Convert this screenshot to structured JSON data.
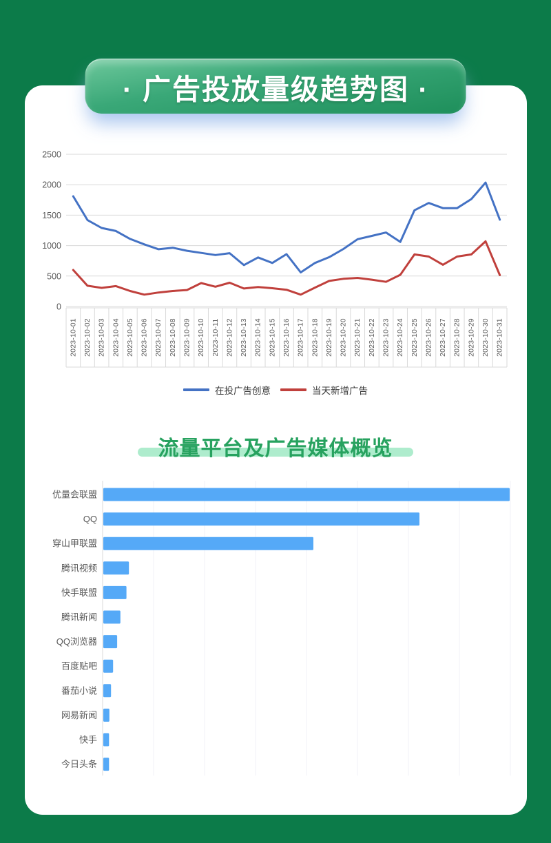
{
  "banner": {
    "title": "· 广告投放量级趋势图 ·"
  },
  "section2": {
    "title": "流量平台及广告媒体概览"
  },
  "chart_data": [
    {
      "type": "line",
      "title": "广告投放量级趋势图",
      "categories": [
        "2023-10-01",
        "2023-10-02",
        "2023-10-03",
        "2023-10-04",
        "2023-10-05",
        "2023-10-06",
        "2023-10-07",
        "2023-10-08",
        "2023-10-09",
        "2023-10-10",
        "2023-10-11",
        "2023-10-12",
        "2023-10-13",
        "2023-10-14",
        "2023-10-15",
        "2023-10-16",
        "2023-10-17",
        "2023-10-18",
        "2023-10-19",
        "2023-10-20",
        "2023-10-21",
        "2023-10-22",
        "2023-10-23",
        "2023-10-24",
        "2023-10-25",
        "2023-10-26",
        "2023-10-27",
        "2023-10-28",
        "2023-10-29",
        "2023-10-30",
        "2023-10-31"
      ],
      "series": [
        {
          "name": "在投广告创意",
          "color": "#4472c4",
          "values": [
            1810,
            1420,
            1290,
            1240,
            1110,
            1020,
            940,
            965,
            915,
            880,
            845,
            875,
            680,
            805,
            715,
            860,
            560,
            715,
            810,
            945,
            1105,
            1160,
            1215,
            1060,
            1580,
            1700,
            1615,
            1615,
            1765,
            2035,
            1425
          ]
        },
        {
          "name": "当天新增广告",
          "color": "#c0403c",
          "values": [
            600,
            340,
            305,
            335,
            255,
            195,
            230,
            255,
            270,
            385,
            325,
            390,
            295,
            320,
            300,
            275,
            195,
            310,
            420,
            455,
            470,
            440,
            405,
            520,
            855,
            820,
            685,
            820,
            855,
            1070,
            515
          ]
        }
      ],
      "ylim": [
        0,
        2500
      ],
      "yticks": [
        0,
        500,
        1000,
        1500,
        2000,
        2500
      ],
      "grid": true,
      "legend_position": "bottom"
    },
    {
      "type": "bar",
      "orientation": "horizontal",
      "title": "流量平台及广告媒体概览",
      "categories": [
        "优量会联盟",
        "QQ",
        "穿山甲联盟",
        "腾讯视频",
        "快手联盟",
        "腾讯新闻",
        "QQ浏览器",
        "百度贴吧",
        "番茄小说",
        "网易新闻",
        "快手",
        "今日头条"
      ],
      "values": [
        100,
        77.8,
        51.7,
        6.3,
        5.7,
        4.2,
        3.4,
        2.4,
        1.9,
        1.5,
        1.4,
        1.4
      ],
      "units": "percent-of-longest-bar (no numeric axis shown)",
      "bar_color": "#55a9f7",
      "grid": true,
      "legend_position": "none"
    }
  ]
}
